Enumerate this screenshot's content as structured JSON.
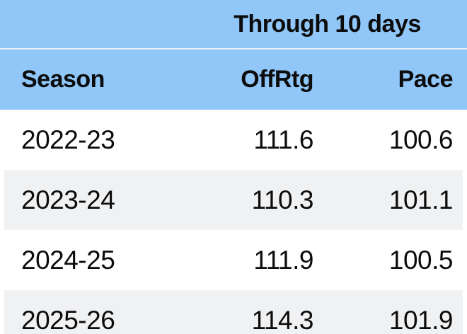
{
  "chart_data": {
    "type": "table",
    "title": "Through 10 days",
    "columns": [
      "Season",
      "OffRtg",
      "Pace"
    ],
    "rows": [
      [
        "2022-23",
        111.6,
        100.6
      ],
      [
        "2023-24",
        110.3,
        101.1
      ],
      [
        "2024-25",
        111.9,
        100.5
      ],
      [
        "2025-26",
        114.3,
        101.9
      ]
    ],
    "layout": {
      "header_bg": "#90c6f8",
      "row_bg": "#ffffff",
      "row_alt_bg": "#f0f1f3",
      "text_color": "#0c0c0c",
      "separator_color": "#e8f1fb",
      "value_alignment": "right",
      "season_alignment": "left"
    }
  }
}
